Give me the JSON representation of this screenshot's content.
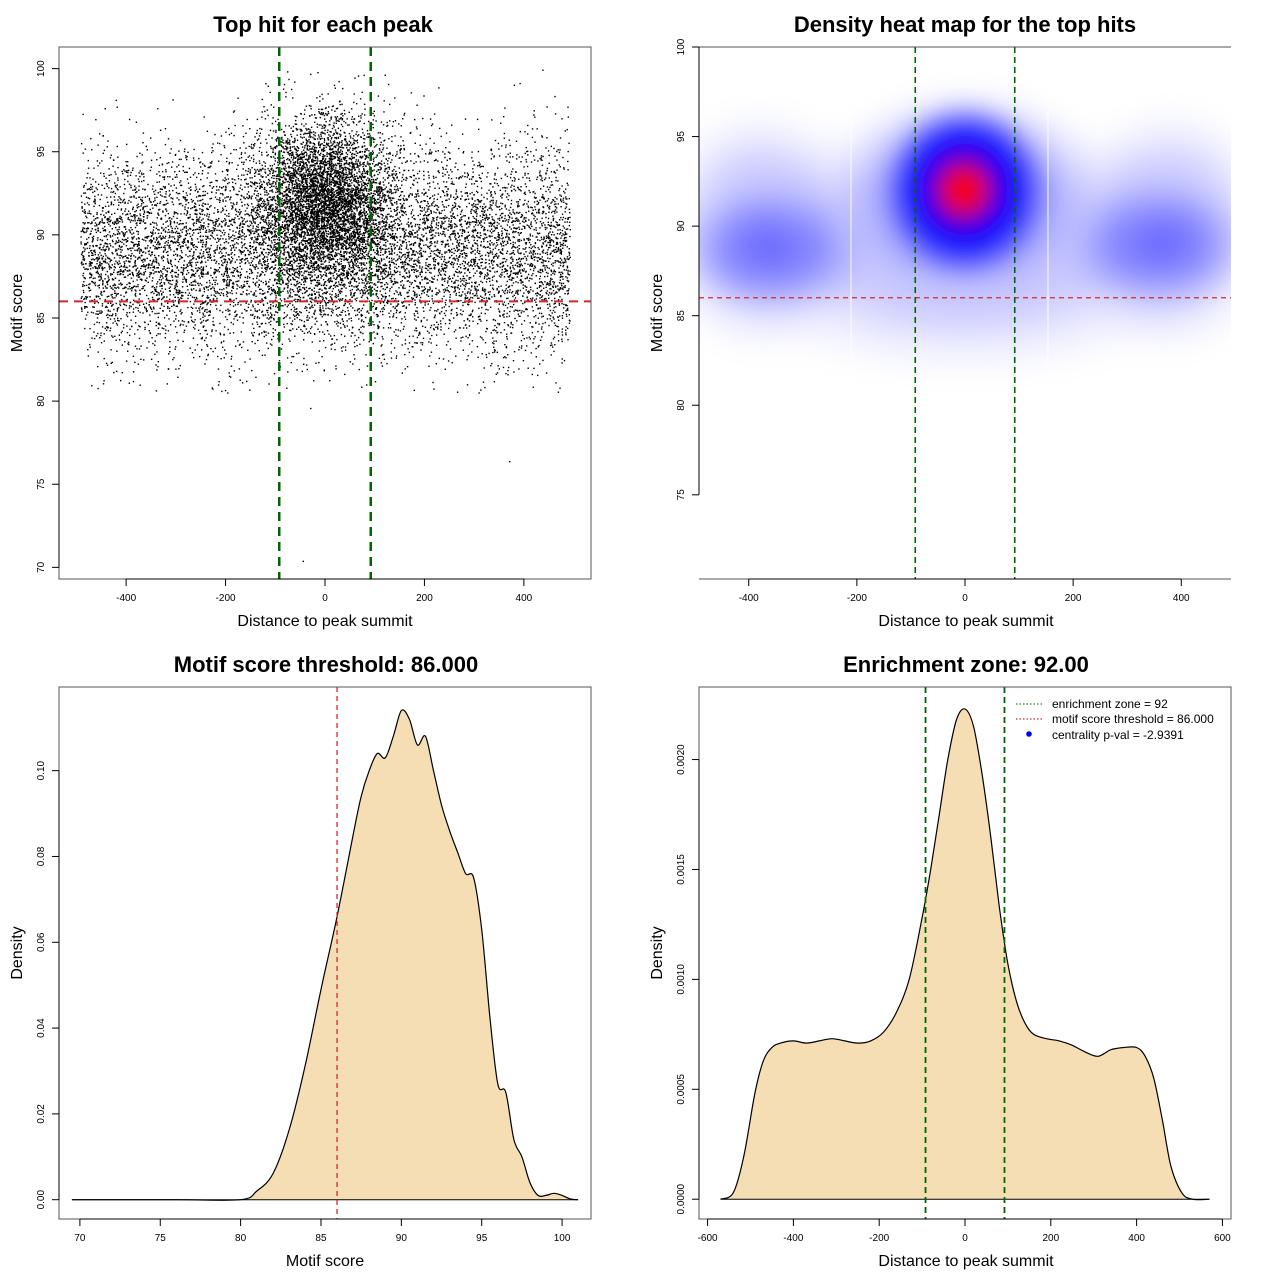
{
  "chart_data": [
    {
      "type": "scatter",
      "title": "Top hit for each peak",
      "xlabel": "Distance to peak summit",
      "ylabel": "Motif score",
      "xlim": [
        -535,
        535
      ],
      "ylim": [
        69.3,
        101.3
      ],
      "xticks": [
        -400,
        -200,
        0,
        200,
        400
      ],
      "xtick_labels": [
        "-400",
        "-200",
        "0",
        "200",
        "400"
      ],
      "yticks": [
        70,
        75,
        80,
        85,
        90,
        95,
        100
      ],
      "ytick_labels": [
        "70",
        "75",
        "80",
        "85",
        "90",
        "95",
        "100"
      ],
      "threshold": 86,
      "enrichment_zone": [
        -92,
        92
      ],
      "point_cloud": {
        "x_range": [
          -492,
          492
        ],
        "y_range": [
          80.5,
          100
        ],
        "center_x": 0,
        "center_y": 92,
        "background_y_mean": 89
      },
      "outliers": [
        {
          "x": -45,
          "y": 70.4
        },
        {
          "x": 370,
          "y": 76.4
        },
        {
          "x": -30,
          "y": 79.6
        }
      ],
      "grid": false,
      "colors": {
        "points": "#000000",
        "threshold": "#d62728",
        "zone": "#006400"
      }
    },
    {
      "type": "heatmap",
      "title": "Density heat map for the top hits",
      "xlabel": "Distance to peak summit",
      "ylabel": "Motif score",
      "xlim": [
        -492,
        492
      ],
      "ylim": [
        70.3,
        100
      ],
      "xticks": [
        -400,
        -200,
        0,
        200,
        400
      ],
      "xtick_labels": [
        "-400",
        "-200",
        "0",
        "200",
        "400"
      ],
      "yticks": [
        75,
        80,
        85,
        90,
        95,
        100
      ],
      "ytick_labels": [
        "75",
        "80",
        "85",
        "90",
        "95",
        "100"
      ],
      "threshold": 86,
      "enrichment_zone": [
        -92,
        92
      ],
      "density_peak": {
        "x": 0,
        "y": 92
      },
      "colors": {
        "low": "#ffffff",
        "mid": "#0000ff",
        "high": "#ff0000",
        "threshold": "#d62728",
        "zone": "#006400"
      }
    },
    {
      "type": "area",
      "title": "Motif score threshold: 86.000",
      "xlabel": "Motif score",
      "ylabel": "Density",
      "xlim": [
        68.7,
        101.8
      ],
      "ylim": [
        -0.0045,
        0.1195
      ],
      "xticks": [
        70,
        75,
        80,
        85,
        90,
        95,
        100
      ],
      "xtick_labels": [
        "70",
        "75",
        "80",
        "85",
        "90",
        "95",
        "100"
      ],
      "yticks": [
        0,
        0.02,
        0.04,
        0.06,
        0.08,
        0.1
      ],
      "ytick_labels": [
        "0.00",
        "0.02",
        "0.04",
        "0.06",
        "0.08",
        "0.10"
      ],
      "threshold": 86,
      "x": [
        69.5,
        76,
        80,
        81,
        82,
        83,
        84,
        85,
        86,
        87,
        87.5,
        88,
        88.5,
        89,
        89.5,
        90,
        90.5,
        91,
        91.5,
        92,
        92.5,
        93,
        93.5,
        94,
        94.5,
        95,
        95.5,
        96,
        96.5,
        97,
        97.5,
        98,
        98.5,
        99,
        99.5,
        100,
        100.5,
        101
      ],
      "y": [
        0.0,
        0.0,
        0.0,
        0.002,
        0.006,
        0.016,
        0.031,
        0.049,
        0.066,
        0.085,
        0.094,
        0.1,
        0.104,
        0.103,
        0.108,
        0.114,
        0.112,
        0.106,
        0.108,
        0.1,
        0.092,
        0.086,
        0.081,
        0.076,
        0.075,
        0.063,
        0.043,
        0.027,
        0.025,
        0.014,
        0.01,
        0.004,
        0.001,
        0.001,
        0.0015,
        0.001,
        0.0002,
        0.0
      ],
      "grid": false,
      "colors": {
        "fill": "#f5deb3",
        "line": "#000000",
        "threshold": "#d62728"
      }
    },
    {
      "type": "area",
      "title": "Enrichment zone: 92.00",
      "xlabel": "Distance to peak summit",
      "ylabel": "Density",
      "xlim": [
        -620,
        620
      ],
      "ylim": [
        -9e-05,
        0.00233
      ],
      "xticks": [
        -600,
        -400,
        -200,
        0,
        200,
        400,
        600
      ],
      "xtick_labels": [
        "-600",
        "-400",
        "-200",
        "0",
        "200",
        "400",
        "600"
      ],
      "yticks": [
        0,
        0.0005,
        0.001,
        0.0015,
        0.002
      ],
      "ytick_labels": [
        "0.0000",
        "0.0005",
        "0.0010",
        "0.0015",
        "0.0020"
      ],
      "enrichment_zone": [
        -92,
        92
      ],
      "x": [
        -570,
        -540,
        -515,
        -490,
        -470,
        -450,
        -430,
        -400,
        -370,
        -340,
        -310,
        -280,
        -250,
        -220,
        -190,
        -160,
        -130,
        -100,
        -80,
        -60,
        -40,
        -20,
        0,
        20,
        40,
        60,
        80,
        100,
        120,
        140,
        160,
        190,
        220,
        250,
        280,
        310,
        340,
        370,
        400,
        420,
        440,
        460,
        480,
        505,
        530,
        570
      ],
      "y": [
        0.0,
        3e-05,
        0.0002,
        0.00048,
        0.00063,
        0.00069,
        0.00071,
        0.00072,
        0.00071,
        0.00072,
        0.00073,
        0.00072,
        0.00071,
        0.00072,
        0.00076,
        0.00085,
        0.001,
        0.00128,
        0.0015,
        0.00175,
        0.002,
        0.00218,
        0.00223,
        0.00215,
        0.00193,
        0.00165,
        0.00133,
        0.00107,
        0.0009,
        0.0008,
        0.00075,
        0.00073,
        0.00072,
        0.0007,
        0.00067,
        0.00065,
        0.00068,
        0.00069,
        0.00069,
        0.00065,
        0.00055,
        0.00036,
        0.00015,
        3e-05,
        0.0,
        0.0
      ],
      "grid": false,
      "legend": {
        "placement": "top-right",
        "entries": [
          "enrichment zone = 92",
          "motif score threshold = 86.000",
          "centrality p-val = -2.9391"
        ]
      },
      "colors": {
        "fill": "#f5deb3",
        "line": "#000000",
        "zone": "#006400",
        "legend_zone": "#228b22",
        "legend_threshold": "#d62728",
        "legend_pval": "#0000ff"
      }
    }
  ]
}
